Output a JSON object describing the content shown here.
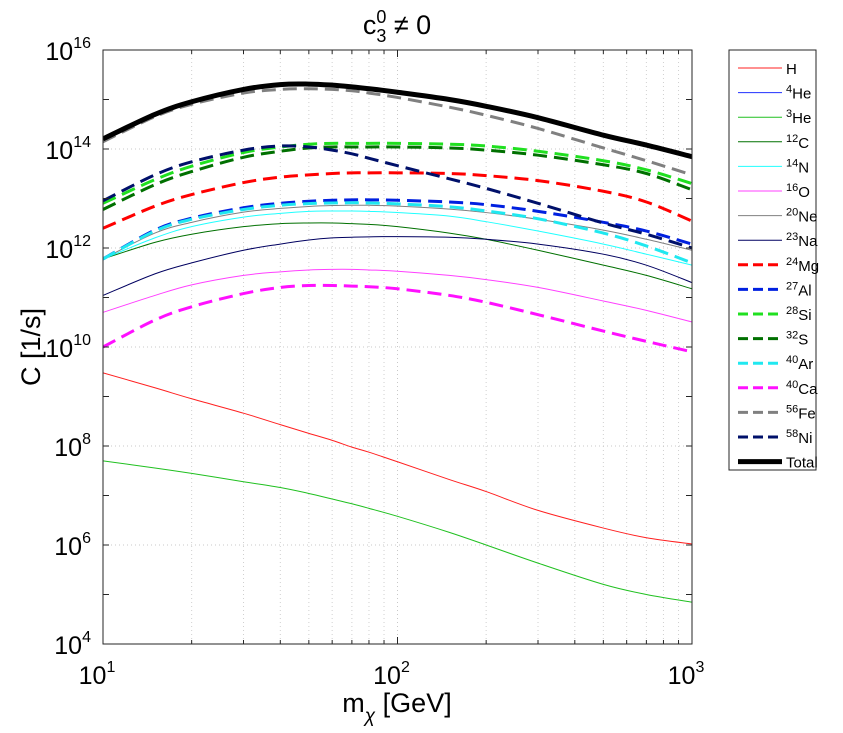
{
  "chart_data": {
    "type": "line",
    "title": "c_3^0 ≠ 0",
    "title_parts": {
      "base": "c",
      "sub": "3",
      "sup": "0",
      "rest": " ≠ 0"
    },
    "xlabel": "m_χ [GeV]",
    "xlabel_parts": {
      "base": "m",
      "sub": "χ",
      "rest": " [GeV]"
    },
    "ylabel": "C [1/s]",
    "xscale": "log",
    "yscale": "log",
    "xlim": [
      10,
      1000
    ],
    "ylim": [
      10000,
      10000000000000000
    ],
    "grid": true,
    "legend_position": "outside-top-right",
    "x_ticks": [
      {
        "value": 10,
        "base": "10",
        "exp": "1"
      },
      {
        "value": 100,
        "base": "10",
        "exp": "2"
      },
      {
        "value": 1000,
        "base": "10",
        "exp": "3"
      }
    ],
    "y_ticks": [
      {
        "value": 10000,
        "base": "10",
        "exp": "4"
      },
      {
        "value": 1000000,
        "base": "10",
        "exp": "6"
      },
      {
        "value": 100000000,
        "base": "10",
        "exp": "8"
      },
      {
        "value": 10000000000,
        "base": "10",
        "exp": "10"
      },
      {
        "value": 1000000000000,
        "base": "10",
        "exp": "12"
      },
      {
        "value": 100000000000000,
        "base": "10",
        "exp": "14"
      },
      {
        "value": 10000000000000000,
        "base": "10",
        "exp": "16"
      }
    ],
    "x": [
      10,
      15,
      20,
      30,
      40,
      50,
      60,
      70,
      80,
      100,
      150,
      200,
      300,
      500,
      700,
      1000
    ],
    "series": [
      {
        "name": "H",
        "iso": "",
        "el": "H",
        "color": "#ff2020",
        "style": "solid",
        "width": 1,
        "values": [
          3000000000.0,
          1500000000.0,
          900000000.0,
          460000000.0,
          270000000.0,
          180000000.0,
          130000000.0,
          95000000.0,
          75000000.0,
          48000000.0,
          21000000.0,
          12000000.0,
          5000000.0,
          2200000.0,
          1400000.0,
          1050000.0
        ]
      },
      {
        "name": "4He",
        "iso": "4",
        "el": "He",
        "color": "#2030ff",
        "style": "solid",
        "width": 1,
        "values": [
          null,
          null,
          null,
          null,
          null,
          null,
          null,
          null,
          null,
          null,
          null,
          null,
          null,
          null,
          null,
          null
        ]
      },
      {
        "name": "3He",
        "iso": "3",
        "el": "He",
        "color": "#20c020",
        "style": "solid",
        "width": 1,
        "values": [
          50000000.0,
          36000000.0,
          28000000.0,
          19000000.0,
          14500000.0,
          11000000.0,
          8500000.0,
          6800000.0,
          5500000.0,
          3800000.0,
          1800000.0,
          1000000.0,
          430000.0,
          160000.0,
          100000.0,
          70000.0
        ]
      },
      {
        "name": "12C",
        "iso": "12",
        "el": "C",
        "color": "#007000",
        "style": "solid",
        "width": 1,
        "values": [
          600000000000.0,
          1300000000000.0,
          1900000000000.0,
          2700000000000.0,
          3100000000000.0,
          3200000000000.0,
          3200000000000.0,
          3100000000000.0,
          3000000000000.0,
          2700000000000.0,
          2000000000000.0,
          1500000000000.0,
          900000000000.0,
          450000000000.0,
          280000000000.0,
          150000000000.0
        ]
      },
      {
        "name": "14N",
        "iso": "14",
        "el": "N",
        "color": "#20ffff",
        "style": "solid",
        "width": 1,
        "values": [
          600000000000.0,
          1600000000000.0,
          2700000000000.0,
          4200000000000.0,
          5000000000000.0,
          5500000000000.0,
          5600000000000.0,
          5600000000000.0,
          5500000000000.0,
          5200000000000.0,
          4400000000000.0,
          3400000000000.0,
          2200000000000.0,
          1200000000000.0,
          750000000000.0,
          450000000000.0
        ]
      },
      {
        "name": "16O",
        "iso": "16",
        "el": "O",
        "color": "#ff40ff",
        "style": "solid",
        "width": 1,
        "values": [
          50000000000.0,
          110000000000.0,
          180000000000.0,
          280000000000.0,
          330000000000.0,
          360000000000.0,
          370000000000.0,
          370000000000.0,
          360000000000.0,
          340000000000.0,
          280000000000.0,
          230000000000.0,
          160000000000.0,
          85000000000.0,
          55000000000.0,
          32000000000.0
        ]
      },
      {
        "name": "20Ne",
        "iso": "20",
        "el": "Ne",
        "color": "#808080",
        "style": "solid",
        "width": 1,
        "values": [
          600000000000.0,
          2000000000000.0,
          3300000000000.0,
          5300000000000.0,
          6300000000000.0,
          6900000000000.0,
          7200000000000.0,
          7300000000000.0,
          7300000000000.0,
          7000000000000.0,
          6100000000000.0,
          5200000000000.0,
          3800000000000.0,
          2300000000000.0,
          1500000000000.0,
          900000000000.0
        ]
      },
      {
        "name": "23Na",
        "iso": "23",
        "el": "Na",
        "color": "#000060",
        "style": "solid",
        "width": 1,
        "values": [
          110000000000.0,
          300000000000.0,
          500000000000.0,
          900000000000.0,
          1200000000000.0,
          1450000000000.0,
          1600000000000.0,
          1650000000000.0,
          1680000000000.0,
          1700000000000.0,
          1650000000000.0,
          1500000000000.0,
          1200000000000.0,
          750000000000.0,
          450000000000.0,
          200000000000.0
        ]
      },
      {
        "name": "24Mg",
        "iso": "24",
        "el": "Mg",
        "color": "#ff0000",
        "style": "dashed",
        "width": 3,
        "values": [
          2500000000000.0,
          7000000000000.0,
          12000000000000.0,
          21000000000000.0,
          27000000000000.0,
          30000000000000.0,
          32000000000000.0,
          33000000000000.0,
          33000000000000.0,
          33000000000000.0,
          32000000000000.0,
          29000000000000.0,
          23000000000000.0,
          14000000000000.0,
          8500000000000.0,
          3500000000000.0
        ]
      },
      {
        "name": "27Al",
        "iso": "27",
        "el": "Al",
        "color": "#0020e0",
        "style": "dashed",
        "width": 3,
        "values": [
          600000000000.0,
          2300000000000.0,
          4000000000000.0,
          6500000000000.0,
          8000000000000.0,
          8800000000000.0,
          9200000000000.0,
          9400000000000.0,
          9400000000000.0,
          9200000000000.0,
          8500000000000.0,
          7500000000000.0,
          5500000000000.0,
          3300000000000.0,
          2200000000000.0,
          1200000000000.0
        ]
      },
      {
        "name": "28Si",
        "iso": "28",
        "el": "Si",
        "color": "#20e020",
        "style": "dashed",
        "width": 3,
        "values": [
          8000000000000.0,
          24000000000000.0,
          45000000000000.0,
          85000000000000.0,
          110000000000000.0,
          125000000000000.0,
          130000000000000.0,
          130000000000000.0,
          130000000000000.0,
          130000000000000.0,
          125000000000000.0,
          115000000000000.0,
          90000000000000.0,
          58000000000000.0,
          38000000000000.0,
          20000000000000.0
        ]
      },
      {
        "name": "32S",
        "iso": "32",
        "el": "S",
        "color": "#007000",
        "style": "dashed",
        "width": 3,
        "values": [
          6000000000000.0,
          19000000000000.0,
          35000000000000.0,
          68000000000000.0,
          90000000000000.0,
          105000000000000.0,
          110000000000000.0,
          110000000000000.0,
          110000000000000.0,
          110000000000000.0,
          105000000000000.0,
          95000000000000.0,
          75000000000000.0,
          48000000000000.0,
          32000000000000.0,
          15000000000000.0
        ]
      },
      {
        "name": "40Ar",
        "iso": "40",
        "el": "Ar",
        "color": "#20e8f0",
        "style": "dashed",
        "width": 3,
        "values": [
          600000000000.0,
          2200000000000.0,
          3800000000000.0,
          6000000000000.0,
          7300000000000.0,
          7900000000000.0,
          8100000000000.0,
          8200000000000.0,
          8100000000000.0,
          7800000000000.0,
          6800000000000.0,
          5600000000000.0,
          3900000000000.0,
          2000000000000.0,
          1100000000000.0,
          500000000000.0
        ]
      },
      {
        "name": "40Ca",
        "iso": "40",
        "el": "Ca",
        "color": "#ff10ff",
        "style": "dashed",
        "width": 3,
        "values": [
          10000000000.0,
          35000000000.0,
          65000000000.0,
          120000000000.0,
          160000000000.0,
          175000000000.0,
          175000000000.0,
          170000000000.0,
          165000000000.0,
          150000000000.0,
          110000000000.0,
          80000000000.0,
          45000000000.0,
          21000000000.0,
          13000000000.0,
          8000000000.0
        ]
      },
      {
        "name": "56Fe",
        "iso": "56",
        "el": "Fe",
        "color": "#808080",
        "style": "dashed",
        "width": 3,
        "values": [
          140000000000000.0,
          450000000000000.0,
          800000000000000.0,
          1350000000000000.0,
          1600000000000000.0,
          1650000000000000.0,
          1600000000000000.0,
          1500000000000000.0,
          1350000000000000.0,
          1100000000000000.0,
          700000000000000.0,
          480000000000000.0,
          260000000000000.0,
          105000000000000.0,
          58000000000000.0,
          30000000000000.0
        ]
      },
      {
        "name": "58Ni",
        "iso": "58",
        "el": "Ni",
        "color": "#00106a",
        "style": "dashed",
        "width": 3,
        "values": [
          9000000000000.0,
          30000000000000.0,
          55000000000000.0,
          95000000000000.0,
          115000000000000.0,
          110000000000000.0,
          95000000000000.0,
          80000000000000.0,
          65000000000000.0,
          46000000000000.0,
          25000000000000.0,
          16000000000000.0,
          8000000000000.0,
          3200000000000.0,
          1900000000000.0,
          1000000000000.0
        ]
      },
      {
        "name": "Total",
        "iso": "",
        "el": "Total",
        "color": "#000000",
        "style": "solid",
        "width": 5,
        "values": [
          160000000000000.0,
          500000000000000.0,
          900000000000000.0,
          1600000000000000.0,
          2000000000000000.0,
          2050000000000000.0,
          1950000000000000.0,
          1800000000000000.0,
          1650000000000000.0,
          1400000000000000.0,
          1000000000000000.0,
          730000000000000.0,
          430000000000000.0,
          190000000000000.0,
          120000000000000.0,
          70000000000000.0
        ]
      }
    ]
  }
}
